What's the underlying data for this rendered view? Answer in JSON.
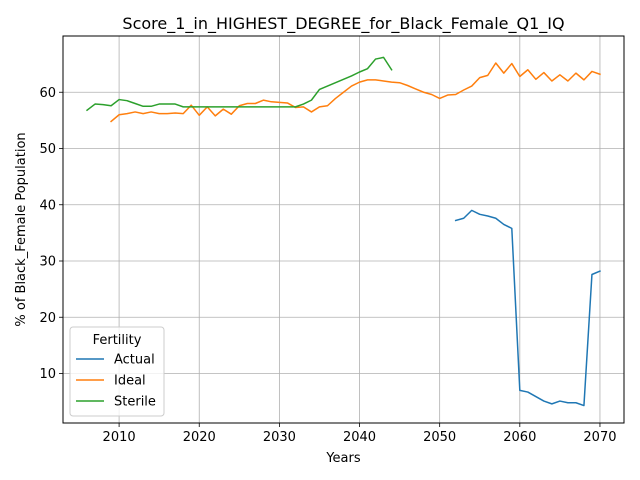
{
  "chart_data": {
    "type": "line",
    "title": "Score_1_in_HIGHEST_DEGREE_for_Black_Female_Q1_IQ",
    "xlabel": "Years",
    "ylabel": "% of Black_Female Population",
    "xlim": [
      2003,
      2073
    ],
    "ylim": [
      1.2,
      70.0
    ],
    "x_ticks": [
      2010,
      2020,
      2030,
      2040,
      2050,
      2060,
      2070
    ],
    "y_ticks": [
      10,
      20,
      30,
      40,
      50,
      60
    ],
    "grid": true,
    "legend": {
      "title": "Fertility",
      "placement": "lower-left"
    },
    "series": [
      {
        "name": "Actual",
        "color": "#1f77b4",
        "points": [
          [
            2052,
            37.2
          ],
          [
            2053,
            37.6
          ],
          [
            2054,
            39.0
          ],
          [
            2055,
            38.3
          ],
          [
            2056,
            38.0
          ],
          [
            2057,
            37.6
          ],
          [
            2058,
            36.5
          ],
          [
            2059,
            35.8
          ],
          [
            2060,
            7.0
          ],
          [
            2061,
            6.7
          ],
          [
            2062,
            5.9
          ],
          [
            2063,
            5.1
          ],
          [
            2064,
            4.6
          ],
          [
            2065,
            5.1
          ],
          [
            2066,
            4.8
          ],
          [
            2067,
            4.8
          ],
          [
            2068,
            4.3
          ],
          [
            2069,
            27.6
          ],
          [
            2070,
            28.2
          ]
        ]
      },
      {
        "name": "Ideal",
        "color": "#ff7f0e",
        "points": [
          [
            2009,
            54.8
          ],
          [
            2010,
            56.0
          ],
          [
            2011,
            56.2
          ],
          [
            2012,
            56.5
          ],
          [
            2013,
            56.2
          ],
          [
            2014,
            56.5
          ],
          [
            2015,
            56.2
          ],
          [
            2016,
            56.2
          ],
          [
            2017,
            56.3
          ],
          [
            2018,
            56.2
          ],
          [
            2019,
            57.7
          ],
          [
            2020,
            55.9
          ],
          [
            2021,
            57.4
          ],
          [
            2022,
            55.8
          ],
          [
            2023,
            57.0
          ],
          [
            2024,
            56.1
          ],
          [
            2025,
            57.6
          ],
          [
            2026,
            58.0
          ],
          [
            2027,
            58.0
          ],
          [
            2028,
            58.6
          ],
          [
            2029,
            58.3
          ],
          [
            2030,
            58.2
          ],
          [
            2031,
            58.1
          ],
          [
            2032,
            57.3
          ],
          [
            2033,
            57.4
          ],
          [
            2034,
            56.5
          ],
          [
            2035,
            57.4
          ],
          [
            2036,
            57.6
          ],
          [
            2037,
            58.9
          ],
          [
            2038,
            60.0
          ],
          [
            2039,
            61.1
          ],
          [
            2040,
            61.8
          ],
          [
            2041,
            62.2
          ],
          [
            2042,
            62.2
          ],
          [
            2043,
            62.0
          ],
          [
            2044,
            61.8
          ],
          [
            2045,
            61.7
          ],
          [
            2046,
            61.2
          ],
          [
            2047,
            60.6
          ],
          [
            2048,
            60.0
          ],
          [
            2049,
            59.6
          ],
          [
            2050,
            58.9
          ],
          [
            2051,
            59.5
          ],
          [
            2052,
            59.6
          ],
          [
            2053,
            60.4
          ],
          [
            2054,
            61.1
          ],
          [
            2055,
            62.6
          ],
          [
            2056,
            63.0
          ],
          [
            2057,
            65.2
          ],
          [
            2058,
            63.4
          ],
          [
            2059,
            65.1
          ],
          [
            2060,
            62.8
          ],
          [
            2061,
            64.0
          ],
          [
            2062,
            62.3
          ],
          [
            2063,
            63.5
          ],
          [
            2064,
            62.0
          ],
          [
            2065,
            63.1
          ],
          [
            2066,
            62.0
          ],
          [
            2067,
            63.4
          ],
          [
            2068,
            62.2
          ],
          [
            2069,
            63.7
          ],
          [
            2070,
            63.2
          ]
        ]
      },
      {
        "name": "Sterile",
        "color": "#2ca02c",
        "points": [
          [
            2006,
            56.8
          ],
          [
            2007,
            57.9
          ],
          [
            2008,
            57.8
          ],
          [
            2009,
            57.6
          ],
          [
            2010,
            58.7
          ],
          [
            2011,
            58.5
          ],
          [
            2012,
            58.0
          ],
          [
            2013,
            57.5
          ],
          [
            2014,
            57.5
          ],
          [
            2015,
            57.9
          ],
          [
            2016,
            57.9
          ],
          [
            2017,
            57.9
          ],
          [
            2018,
            57.4
          ],
          [
            2019,
            57.4
          ],
          [
            2020,
            57.4
          ],
          [
            2021,
            57.4
          ],
          [
            2022,
            57.4
          ],
          [
            2023,
            57.4
          ],
          [
            2024,
            57.4
          ],
          [
            2025,
            57.4
          ],
          [
            2026,
            57.4
          ],
          [
            2027,
            57.4
          ],
          [
            2028,
            57.4
          ],
          [
            2029,
            57.4
          ],
          [
            2030,
            57.4
          ],
          [
            2031,
            57.4
          ],
          [
            2032,
            57.4
          ],
          [
            2033,
            57.9
          ],
          [
            2034,
            58.6
          ],
          [
            2035,
            60.5
          ],
          [
            2036,
            61.1
          ],
          [
            2037,
            61.7
          ],
          [
            2038,
            62.3
          ],
          [
            2039,
            62.9
          ],
          [
            2040,
            63.6
          ],
          [
            2041,
            64.2
          ],
          [
            2042,
            65.9
          ],
          [
            2043,
            66.2
          ],
          [
            2044,
            64.0
          ]
        ]
      }
    ]
  }
}
